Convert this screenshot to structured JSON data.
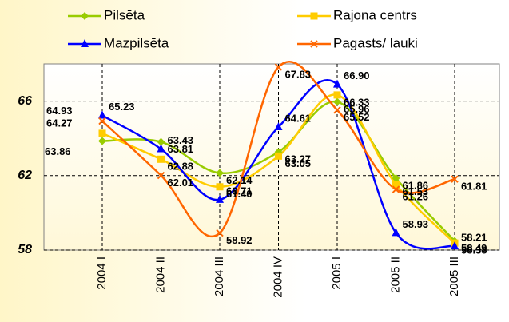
{
  "chart_data": {
    "type": "line",
    "categories": [
      "2004 I",
      "2004 II",
      "2004 III",
      "2004 IV",
      "2005 I",
      "2005 II",
      "2005 III"
    ],
    "series": [
      {
        "name": "Pilsēta",
        "color": "#99cc00",
        "marker": "diamond",
        "values": [
          63.86,
          63.81,
          62.14,
          63.27,
          65.96,
          61.86,
          58.49
        ],
        "value_labels": [
          "63.86",
          "63.81",
          "62.14",
          "63.27",
          "65.96",
          "61.86",
          "58.49"
        ]
      },
      {
        "name": "Rajona centrs",
        "color": "#ffcc00",
        "marker": "square",
        "values": [
          64.27,
          62.88,
          61.4,
          63.05,
          66.33,
          61.53,
          58.38
        ],
        "value_labels": [
          "64.27",
          "62.88",
          "61.40",
          "63.05",
          "66.33",
          "61.53",
          "58.38"
        ]
      },
      {
        "name": "Mazpilsēta",
        "color": "#0000ff",
        "marker": "triangle",
        "values": [
          65.23,
          63.43,
          60.71,
          64.61,
          66.9,
          58.93,
          58.21
        ],
        "value_labels": [
          "65.23",
          "63.43",
          "60.71",
          "64.61",
          "66.90",
          "58.93",
          "58.21"
        ]
      },
      {
        "name": "Pagasts/ lauki",
        "color": "#ff6600",
        "marker": "x",
        "values": [
          64.93,
          62.01,
          58.92,
          67.83,
          65.52,
          61.26,
          61.81
        ],
        "value_labels": [
          "64.93",
          "62.01",
          "58.92",
          "67.83",
          "65.52",
          "61.26",
          "61.81"
        ]
      }
    ],
    "ylim": [
      58,
      68
    ],
    "yticks": [
      58,
      62,
      66
    ],
    "grid": true,
    "legend": "top"
  }
}
